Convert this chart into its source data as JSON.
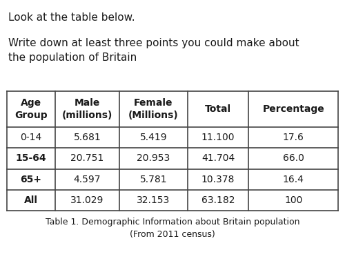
{
  "title_text1": "Look at the table below.",
  "title_text2": "Write down at least three points you could make about\nthe population of Britain",
  "col_headers": [
    "Age\nGroup",
    "Male\n(millions)",
    "Female\n(Millions)",
    "Total",
    "Percentage"
  ],
  "rows": [
    [
      "0-14",
      "5.681",
      "5.419",
      "11.100",
      "17.6"
    ],
    [
      "15-64",
      "20.751",
      "20.953",
      "41.704",
      "66.0"
    ],
    [
      "65+",
      "4.597",
      "5.781",
      "10.378",
      "16.4"
    ],
    [
      "All",
      "31.029",
      "32.153",
      "63.182",
      "100"
    ]
  ],
  "bold_col0": [
    false,
    true,
    true,
    true
  ],
  "caption": "Table 1. Demographic Information about Britain population\n(From 2011 census)",
  "bg_color": "#ffffff",
  "text_color": "#1a1a1a",
  "border_color": "#444444",
  "header_font_size": 10,
  "body_font_size": 10,
  "caption_font_size": 9,
  "instruction_font_size": 11,
  "fig_width": 5.0,
  "fig_height": 3.75,
  "dpi": 100
}
